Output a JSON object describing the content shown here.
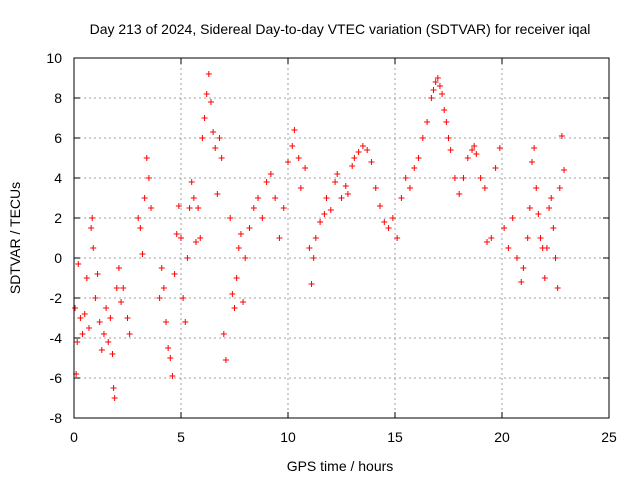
{
  "chart_data": {
    "type": "scatter",
    "title": "Day 213 of 2024, Sidereal Day-to-day VTEC variation (SDTVAR) for receiver iqal",
    "xlabel": "GPS time / hours",
    "ylabel": "SDTVAR / TECUs",
    "xlim": [
      0,
      25
    ],
    "ylim": [
      -8,
      10
    ],
    "x_ticks": [
      0,
      5,
      10,
      15,
      20,
      25
    ],
    "y_ticks": [
      -8,
      -6,
      -4,
      -2,
      0,
      2,
      4,
      6,
      8,
      10
    ],
    "grid": true,
    "marker": "+",
    "color": "#ff0000",
    "series": [
      {
        "name": "SDTVAR",
        "points": [
          [
            0.05,
            -2.5
          ],
          [
            0.1,
            -5.8
          ],
          [
            0.15,
            -4.2
          ],
          [
            0.2,
            -0.3
          ],
          [
            0.3,
            -3.0
          ],
          [
            0.4,
            -3.8
          ],
          [
            0.5,
            -2.8
          ],
          [
            0.6,
            -1.0
          ],
          [
            0.7,
            -3.5
          ],
          [
            0.8,
            1.5
          ],
          [
            0.85,
            2.0
          ],
          [
            0.9,
            0.5
          ],
          [
            1.0,
            -2.0
          ],
          [
            1.1,
            -0.8
          ],
          [
            1.2,
            -3.2
          ],
          [
            1.3,
            -4.6
          ],
          [
            1.4,
            -3.8
          ],
          [
            1.5,
            -2.5
          ],
          [
            1.6,
            -4.2
          ],
          [
            1.7,
            -3.0
          ],
          [
            1.8,
            -4.8
          ],
          [
            1.85,
            -6.5
          ],
          [
            1.9,
            -7.0
          ],
          [
            2.0,
            -1.5
          ],
          [
            2.1,
            -0.5
          ],
          [
            2.2,
            -2.2
          ],
          [
            2.3,
            -1.5
          ],
          [
            2.5,
            -3.0
          ],
          [
            2.6,
            -3.8
          ],
          [
            3.0,
            2.0
          ],
          [
            3.1,
            1.5
          ],
          [
            3.2,
            0.2
          ],
          [
            3.3,
            3.0
          ],
          [
            3.4,
            5.0
          ],
          [
            3.5,
            4.0
          ],
          [
            3.6,
            2.5
          ],
          [
            4.0,
            -2.0
          ],
          [
            4.1,
            -0.5
          ],
          [
            4.2,
            -1.5
          ],
          [
            4.3,
            -3.2
          ],
          [
            4.4,
            -4.5
          ],
          [
            4.5,
            -5.0
          ],
          [
            4.6,
            -5.9
          ],
          [
            4.7,
            -0.8
          ],
          [
            4.8,
            1.2
          ],
          [
            4.9,
            2.6
          ],
          [
            5.0,
            1.0
          ],
          [
            5.1,
            -2.0
          ],
          [
            5.2,
            -3.2
          ],
          [
            5.3,
            0.0
          ],
          [
            5.4,
            2.5
          ],
          [
            5.5,
            3.8
          ],
          [
            5.6,
            3.0
          ],
          [
            5.7,
            0.8
          ],
          [
            5.8,
            2.5
          ],
          [
            5.9,
            1.0
          ],
          [
            6.0,
            6.0
          ],
          [
            6.1,
            7.0
          ],
          [
            6.2,
            8.2
          ],
          [
            6.3,
            9.2
          ],
          [
            6.4,
            7.8
          ],
          [
            6.5,
            6.3
          ],
          [
            6.6,
            5.5
          ],
          [
            6.7,
            3.2
          ],
          [
            6.8,
            6.0
          ],
          [
            6.9,
            5.0
          ],
          [
            7.0,
            -3.8
          ],
          [
            7.1,
            -5.1
          ],
          [
            7.3,
            2.0
          ],
          [
            7.4,
            -1.8
          ],
          [
            7.5,
            -2.5
          ],
          [
            7.6,
            -1.0
          ],
          [
            7.7,
            0.5
          ],
          [
            7.8,
            1.2
          ],
          [
            7.9,
            -2.2
          ],
          [
            8.0,
            0.0
          ],
          [
            8.2,
            1.5
          ],
          [
            8.4,
            2.5
          ],
          [
            8.6,
            3.0
          ],
          [
            8.8,
            2.0
          ],
          [
            9.0,
            3.8
          ],
          [
            9.2,
            4.2
          ],
          [
            9.4,
            3.0
          ],
          [
            9.6,
            1.0
          ],
          [
            9.8,
            2.5
          ],
          [
            10.0,
            4.8
          ],
          [
            10.2,
            5.6
          ],
          [
            10.3,
            6.4
          ],
          [
            10.5,
            5.0
          ],
          [
            10.6,
            3.5
          ],
          [
            10.8,
            4.5
          ],
          [
            11.0,
            0.5
          ],
          [
            11.1,
            -1.3
          ],
          [
            11.2,
            0.0
          ],
          [
            11.3,
            1.0
          ],
          [
            11.5,
            1.8
          ],
          [
            11.7,
            2.2
          ],
          [
            11.8,
            3.0
          ],
          [
            12.0,
            2.4
          ],
          [
            12.2,
            3.8
          ],
          [
            12.3,
            4.2
          ],
          [
            12.5,
            3.0
          ],
          [
            12.7,
            3.6
          ],
          [
            12.8,
            3.2
          ],
          [
            13.0,
            4.6
          ],
          [
            13.1,
            5.0
          ],
          [
            13.3,
            5.3
          ],
          [
            13.5,
            5.6
          ],
          [
            13.7,
            5.4
          ],
          [
            13.9,
            4.8
          ],
          [
            14.1,
            3.5
          ],
          [
            14.3,
            2.6
          ],
          [
            14.5,
            1.8
          ],
          [
            14.7,
            1.5
          ],
          [
            14.9,
            2.0
          ],
          [
            15.1,
            1.0
          ],
          [
            15.3,
            3.0
          ],
          [
            15.5,
            4.0
          ],
          [
            15.7,
            3.5
          ],
          [
            15.9,
            4.5
          ],
          [
            16.1,
            5.0
          ],
          [
            16.3,
            6.0
          ],
          [
            16.5,
            6.8
          ],
          [
            16.7,
            8.0
          ],
          [
            16.8,
            8.4
          ],
          [
            16.9,
            8.8
          ],
          [
            17.0,
            9.0
          ],
          [
            17.1,
            8.6
          ],
          [
            17.2,
            8.2
          ],
          [
            17.3,
            7.4
          ],
          [
            17.4,
            6.8
          ],
          [
            17.5,
            6.0
          ],
          [
            17.6,
            5.4
          ],
          [
            17.8,
            4.0
          ],
          [
            18.0,
            3.2
          ],
          [
            18.2,
            4.0
          ],
          [
            18.4,
            5.0
          ],
          [
            18.6,
            5.4
          ],
          [
            18.7,
            5.6
          ],
          [
            18.8,
            5.2
          ],
          [
            19.0,
            4.0
          ],
          [
            19.2,
            3.5
          ],
          [
            19.3,
            0.8
          ],
          [
            19.5,
            1.0
          ],
          [
            19.7,
            4.5
          ],
          [
            19.9,
            5.5
          ],
          [
            20.1,
            1.5
          ],
          [
            20.3,
            0.5
          ],
          [
            20.5,
            2.0
          ],
          [
            20.7,
            0.0
          ],
          [
            20.9,
            -1.2
          ],
          [
            21.0,
            -0.5
          ],
          [
            21.2,
            1.0
          ],
          [
            21.3,
            2.5
          ],
          [
            21.4,
            4.8
          ],
          [
            21.5,
            5.5
          ],
          [
            21.6,
            3.5
          ],
          [
            21.7,
            2.2
          ],
          [
            21.8,
            1.0
          ],
          [
            21.9,
            0.5
          ],
          [
            22.0,
            -1.0
          ],
          [
            22.1,
            0.5
          ],
          [
            22.2,
            2.5
          ],
          [
            22.3,
            3.0
          ],
          [
            22.4,
            1.5
          ],
          [
            22.5,
            0.0
          ],
          [
            22.6,
            -1.5
          ],
          [
            22.7,
            3.5
          ],
          [
            22.8,
            6.1
          ],
          [
            22.9,
            4.4
          ]
        ]
      }
    ]
  }
}
